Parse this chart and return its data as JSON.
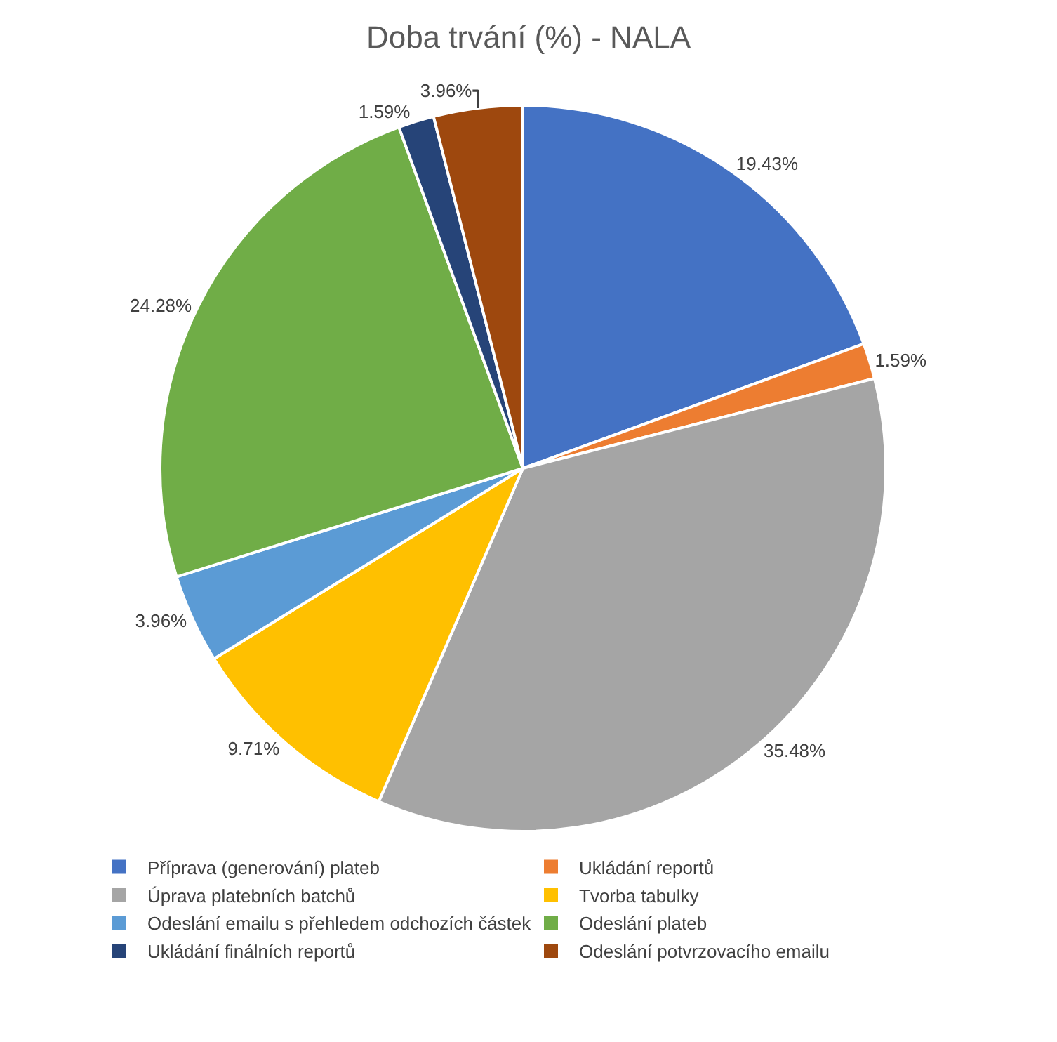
{
  "chart_data": {
    "type": "pie",
    "title": "Doba trvání (%) - NALA",
    "categories": [
      "Příprava (generování) plateb",
      "Ukládání reportů",
      "Úprava platebních batchů",
      "Tvorba tabulky",
      "Odeslání emailu s přehledem odchozích částek",
      "Odeslání plateb",
      "Ukládání finálních reportů",
      "Odeslání potvrzovacího emailu"
    ],
    "values": [
      19.43,
      1.59,
      35.48,
      9.71,
      3.96,
      24.28,
      1.59,
      3.96
    ],
    "value_labels": [
      "19.43%",
      "1.59%",
      "35.48%",
      "9.71%",
      "3.96%",
      "24.28%",
      "1.59%",
      "3.96%"
    ],
    "colors": [
      "#4472c4",
      "#ed7d31",
      "#a5a5a5",
      "#ffc000",
      "#5b9bd5",
      "#70ad47",
      "#264478",
      "#9e480e"
    ],
    "legend": "bottom"
  }
}
